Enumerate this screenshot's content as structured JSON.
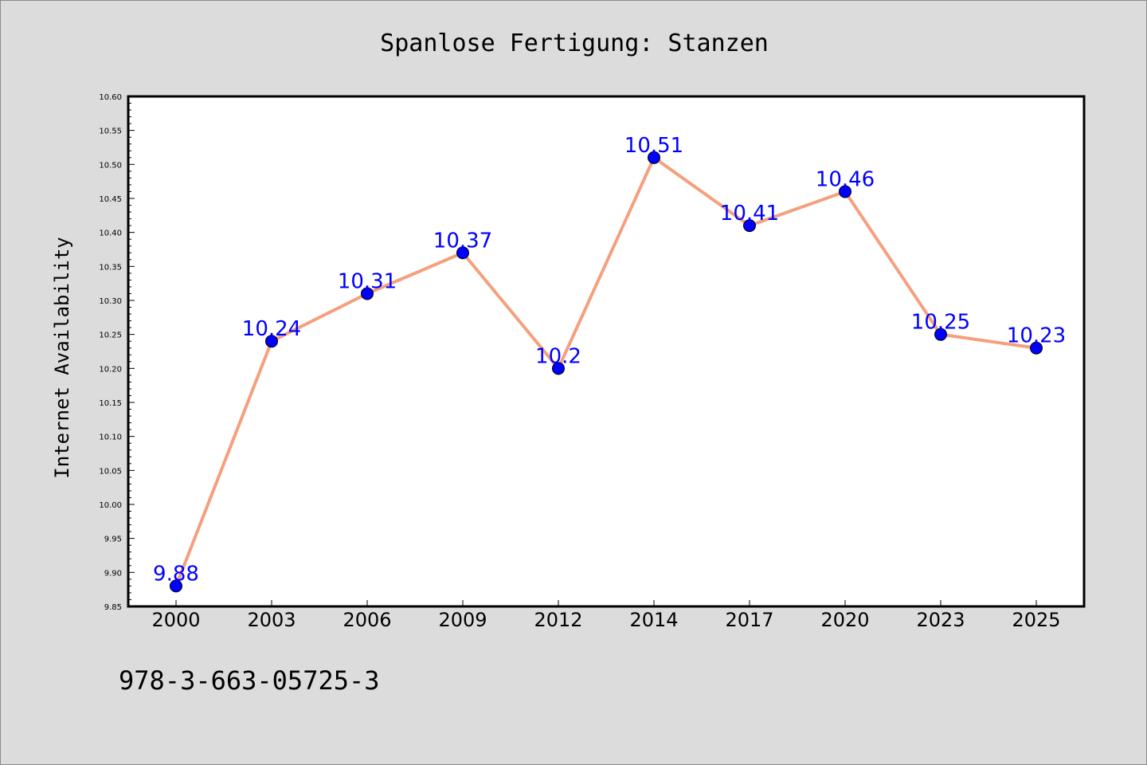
{
  "chart_data": {
    "type": "line",
    "title": "Spanlose Fertigung: Stanzen",
    "xlabel": "",
    "ylabel": "Internet Availability",
    "categories": [
      "2000",
      "2003",
      "2006",
      "2009",
      "2012",
      "2014",
      "2017",
      "2020",
      "2023",
      "2025"
    ],
    "series": [
      {
        "values": [
          9.88,
          10.24,
          10.31,
          10.37,
          10.2,
          10.51,
          10.41,
          10.46,
          10.25,
          10.23
        ],
        "data_labels": [
          "9.88",
          "10.24",
          "10.31",
          "10.37",
          "10.2",
          "10.51",
          "10.41",
          "10.46",
          "10.25",
          "10.23"
        ],
        "line_color": "#f4a07e",
        "marker_color": "#0000ff"
      }
    ],
    "ylim": [
      9.85,
      10.6
    ],
    "yticks": [
      "9.85",
      "9.90",
      "9.95",
      "10.00",
      "10.05",
      "10.10",
      "10.15",
      "10.20",
      "10.25",
      "10.30",
      "10.35",
      "10.40",
      "10.45",
      "10.50",
      "10.55",
      "10.60"
    ],
    "grid": false,
    "label_color": "#0000ff",
    "background": "#dcdcdc",
    "plot_background": "#ffffff"
  },
  "footer": {
    "isbn": "978-3-663-05725-3"
  }
}
